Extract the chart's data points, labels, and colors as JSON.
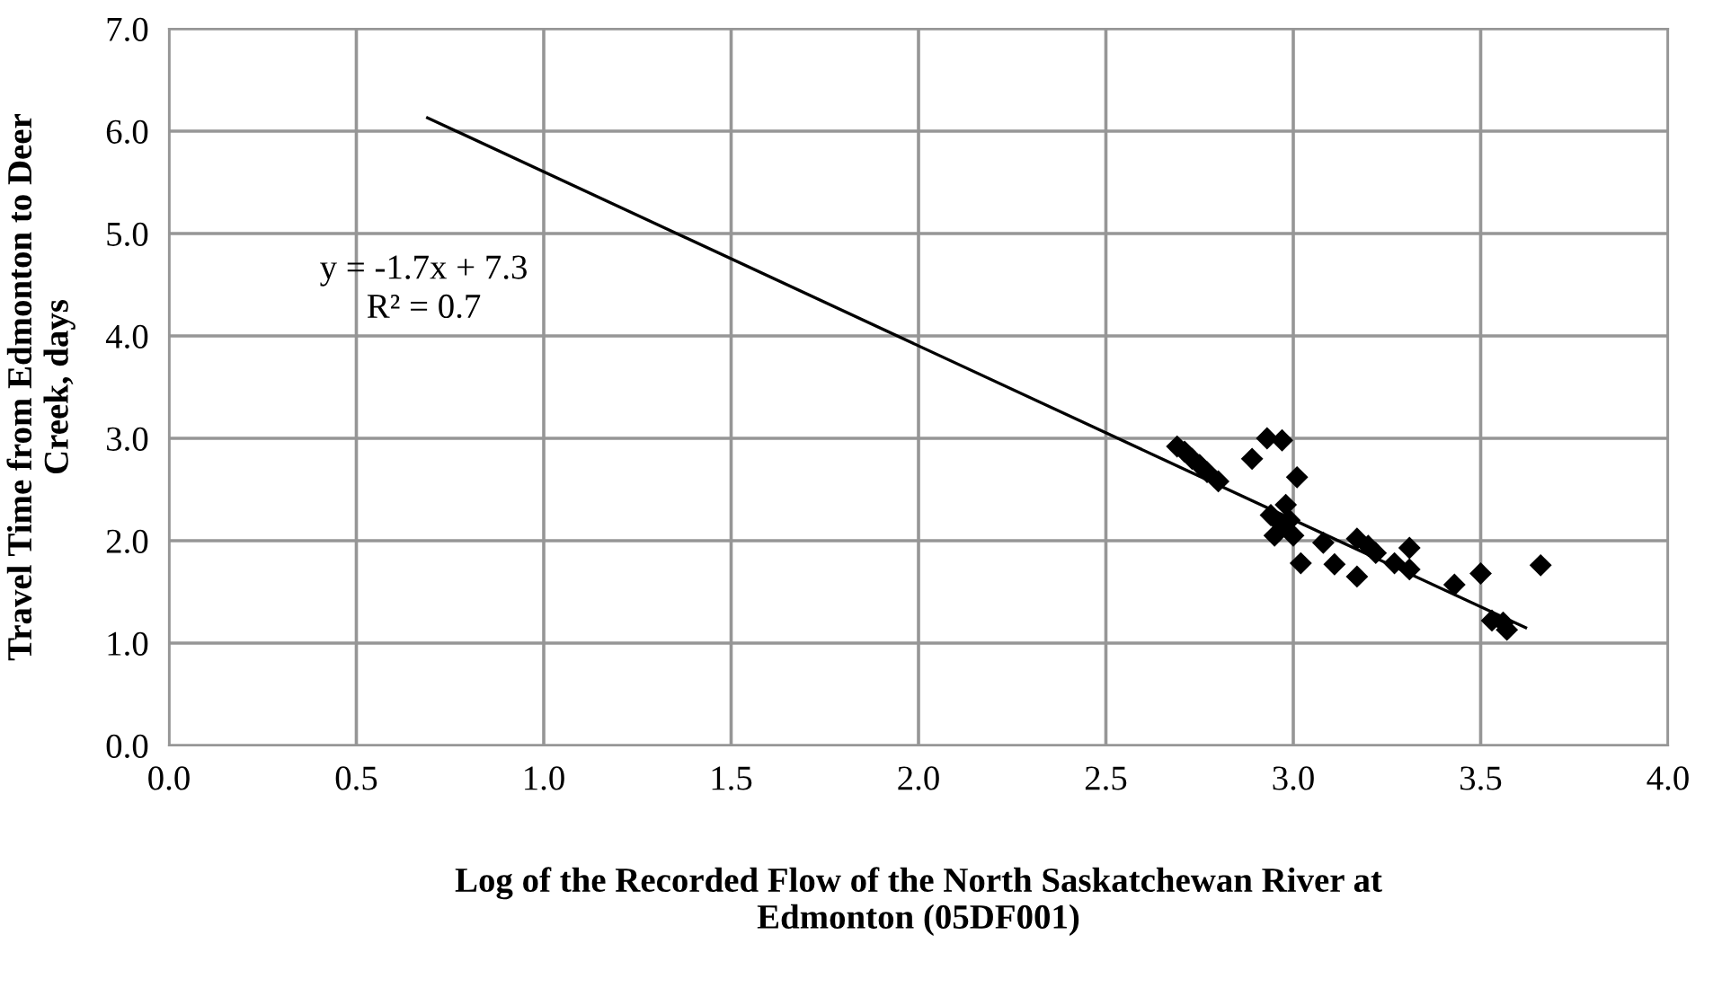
{
  "chart_data": {
    "type": "scatter",
    "xlabel": "Log of the Recorded Flow of the North Saskatchewan River at\nEdmonton (05DF001)",
    "ylabel": "Travel Time from Edmonton to Deer\nCreek, days",
    "xlim": [
      0.0,
      4.0
    ],
    "xticks": [
      {
        "value": 0,
        "label": "0.0"
      },
      0.5,
      {
        "value": 1,
        "label": "1.0"
      },
      1.5,
      {
        "value": 2,
        "label": "2.0"
      },
      2.5,
      {
        "value": 3,
        "label": "3.0"
      },
      3.5,
      {
        "value": 4,
        "label": "4.0"
      }
    ],
    "ylim": [
      0.0,
      7.0
    ],
    "yticks": [
      {
        "value": 0,
        "label": "0.0"
      },
      {
        "value": 1,
        "label": "1.0"
      },
      {
        "value": 2,
        "label": "2.0"
      },
      {
        "value": 3,
        "label": "3.0"
      },
      {
        "value": 4,
        "label": "4.0"
      },
      {
        "value": 5,
        "label": "5.0"
      },
      {
        "value": 6,
        "label": "6.0"
      },
      {
        "value": 7,
        "label": "7.0"
      }
    ],
    "grid": true,
    "legend": false,
    "series": [
      {
        "marker": "diamond",
        "color": "#000000",
        "x": [
          2.69,
          2.71,
          2.73,
          2.75,
          2.77,
          2.8,
          2.89,
          2.93,
          2.97,
          2.94,
          2.95,
          2.97,
          2.98,
          2.99,
          3.0,
          3.01,
          3.02,
          3.08,
          3.11,
          3.17,
          3.17,
          3.2,
          3.22,
          3.27,
          3.31,
          3.31,
          3.43,
          3.5,
          3.53,
          3.56,
          3.57,
          3.66
        ],
        "values": [
          2.92,
          2.87,
          2.8,
          2.74,
          2.67,
          2.58,
          2.8,
          3.0,
          2.98,
          2.25,
          2.05,
          2.15,
          2.35,
          2.2,
          2.05,
          2.62,
          1.78,
          1.98,
          1.77,
          1.65,
          2.02,
          1.95,
          1.88,
          1.78,
          1.93,
          1.72,
          1.57,
          1.68,
          1.22,
          1.2,
          1.13,
          1.76
        ]
      },
      {
        "type": "line",
        "marker": "none",
        "color": "#000000",
        "x": [
          0.69,
          3.62
        ],
        "values": [
          6.13,
          1.15
        ]
      }
    ],
    "annotations": [
      "y = -1.7x + 7.3\nR² = 0.7"
    ]
  }
}
